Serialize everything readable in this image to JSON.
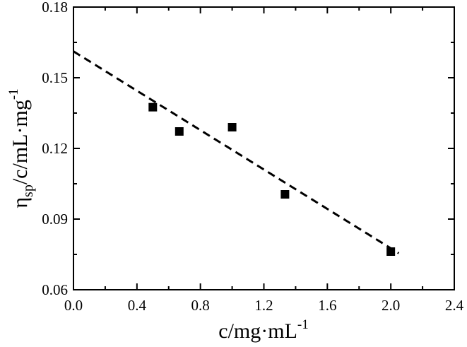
{
  "chart_data": {
    "type": "scatter",
    "title": "",
    "xlabel": {
      "main": "c/mg·mL",
      "sup": "-1"
    },
    "ylabel": {
      "prefix": "η",
      "sub": "sp",
      "main": "/c/mL·mg",
      "sup": "-1"
    },
    "xlim": [
      0.0,
      2.4
    ],
    "ylim": [
      0.06,
      0.18
    ],
    "xticks": [
      "0.0",
      "0.4",
      "0.8",
      "1.2",
      "1.6",
      "2.0",
      "2.4"
    ],
    "yticks": [
      "0.06",
      "0.09",
      "0.12",
      "0.15",
      "0.18"
    ],
    "grid": false,
    "legend": "none",
    "series": [
      {
        "marker": "square",
        "color": "#000000",
        "points": [
          {
            "x": 0.5,
            "y": 0.1375
          },
          {
            "x": 0.667,
            "y": 0.1272
          },
          {
            "x": 1.0,
            "y": 0.129
          },
          {
            "x": 1.333,
            "y": 0.1005
          },
          {
            "x": 2.0,
            "y": 0.0762
          }
        ]
      }
    ],
    "fit_line": {
      "style": "dashed",
      "color": "#000000",
      "x": [
        0.0,
        2.05
      ],
      "y": [
        0.1612,
        0.0755
      ]
    }
  }
}
